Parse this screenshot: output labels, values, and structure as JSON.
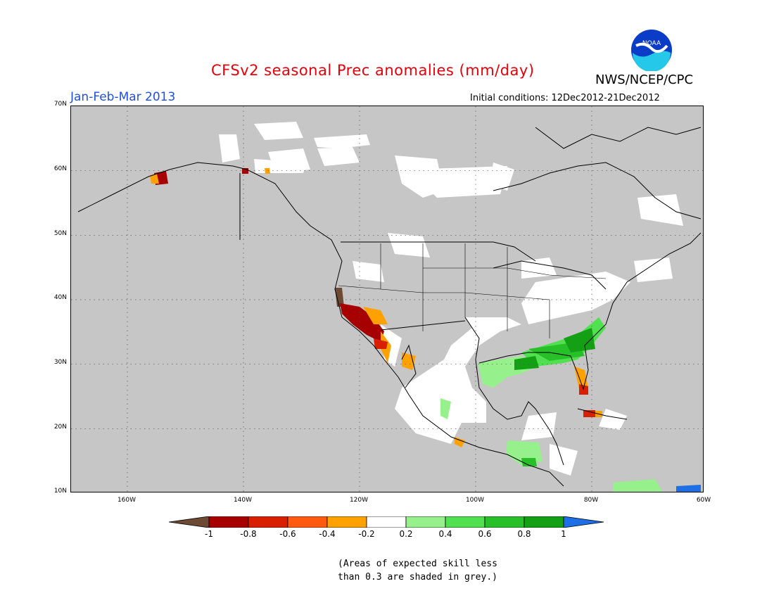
{
  "header": {
    "title": "CFSv2 seasonal Prec anomalies (mm/day)",
    "agency": "NWS/NCEP/CPC",
    "season": "Jan-Feb-Mar 2013",
    "initial_conditions": "Initial conditions: 12Dec2012-21Dec2012",
    "logo_text": "NOAA"
  },
  "map": {
    "lat_labels": [
      "70N",
      "60N",
      "50N",
      "40N",
      "30N",
      "20N",
      "10N"
    ],
    "lon_labels": [
      "160W",
      "140W",
      "120W",
      "100W",
      "80W",
      "60W"
    ],
    "colors": {
      "skill_grey": "#c6c6c6",
      "neutral": "#ffffff",
      "dry_extreme": "#6e4a35",
      "dry_08": "#a60000",
      "dry_06": "#d82000",
      "dry_04": "#ff5a10",
      "dry_02": "#ffa100",
      "wet_02": "#96f08c",
      "wet_04": "#50e050",
      "wet_06": "#28c028",
      "wet_08": "#14a014",
      "wet_extreme": "#1e6ee6"
    }
  },
  "colorbar": {
    "labels": [
      "-1",
      "-0.8",
      "-0.6",
      "-0.4",
      "-0.2",
      "0.2",
      "0.4",
      "0.6",
      "0.8",
      "1"
    ],
    "colors": [
      "#6e4a35",
      "#a60000",
      "#d82000",
      "#ff5a10",
      "#ffa100",
      "#ffffff",
      "#96f08c",
      "#50e050",
      "#28c028",
      "#14a014",
      "#1e6ee6"
    ]
  },
  "footnote": {
    "line1": "(Areas of expected skill less",
    "line2": "than 0.3 are shaded in grey.)"
  }
}
